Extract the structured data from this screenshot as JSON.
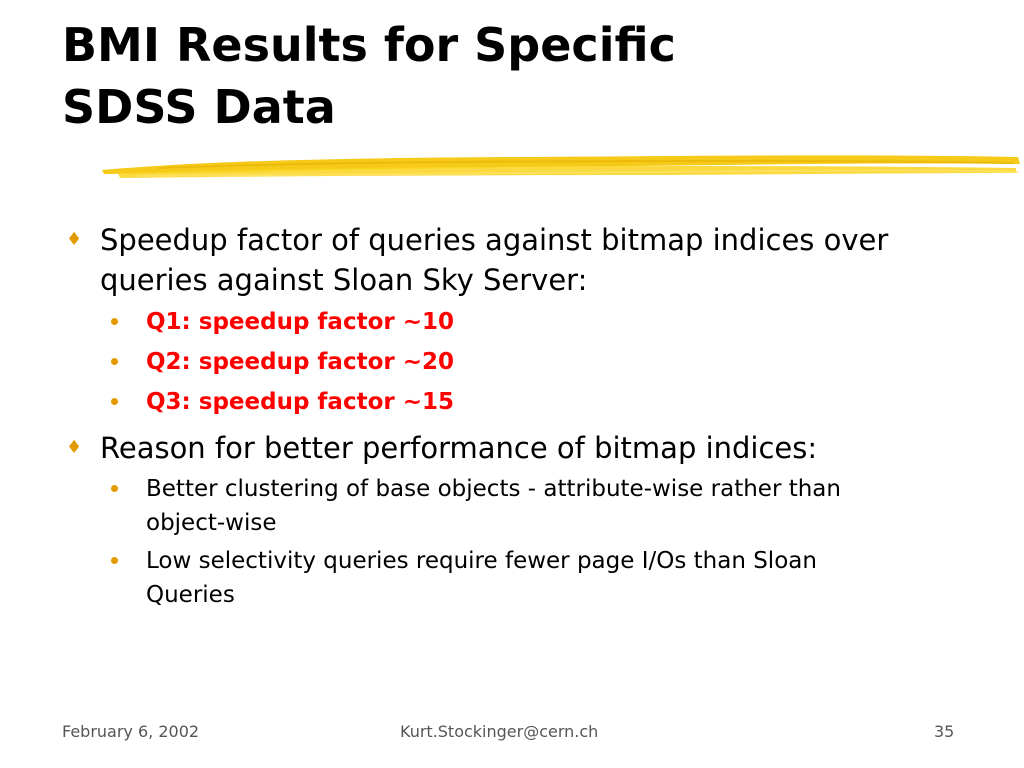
{
  "slide": {
    "title_line1": "BMI Results for Specific",
    "title_line2": "SDSS Data"
  },
  "content": {
    "bullet1": {
      "line1": "Speedup factor of queries against bitmap indices over",
      "line2": "queries against Sloan Sky Server:",
      "subitems": [
        "Q1: speedup factor ~10",
        "Q2: speedup factor ~20",
        "Q3: speedup factor ~15"
      ]
    },
    "bullet2": {
      "text": "Reason for better performance of bitmap indices:",
      "subitems": [
        {
          "line1": "Better clustering of base objects - attribute-wise rather than",
          "line2": "object-wise"
        },
        {
          "line1": "Low selectivity queries require fewer page I/Os than Sloan",
          "line2": "Queries"
        }
      ]
    }
  },
  "footer": {
    "date": "February 6, 2002",
    "email": "Kurt.Stockinger@cern.ch",
    "page": "35"
  },
  "colors": {
    "accent": "#e39a00",
    "highlight_text": "#ff0000",
    "brush_stroke": "#f5c400"
  },
  "icons": {
    "level1_bullet": "diamond-bullet-icon",
    "level2_bullet": "dot-bullet-icon"
  }
}
